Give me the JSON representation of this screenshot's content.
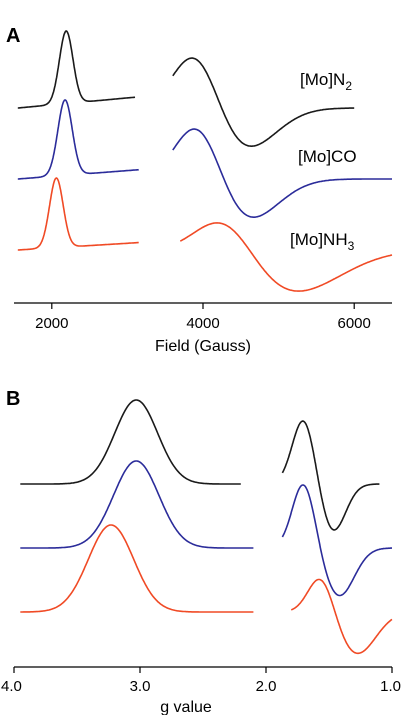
{
  "colors": {
    "n2": "#1a1a1a",
    "co": "#2b2c9a",
    "nh3": "#f04a25"
  },
  "chart_data": [
    {
      "panel": "A",
      "type": "line",
      "xlabel": "Field (Gauss)",
      "ylabel": "",
      "xlim": [
        1500,
        6500
      ],
      "xticks": [
        2000,
        4000,
        6000
      ],
      "grid": false,
      "series": [
        {
          "name": "[Mo]N2",
          "label_main": "[Mo]N",
          "label_sub": "2",
          "color_key": "n2",
          "offset": 2.0,
          "segments": [
            {
              "x0": 1550,
              "x1": 3100,
              "kind": "peak",
              "center": 2190,
              "width": 90,
              "amp": 1.25,
              "slope": 0.00012
            },
            {
              "x0": 3600,
              "x1": 6000,
              "kind": "deriv",
              "pos_center": 3920,
              "pos_width": 300,
              "pos_amp": 1.1,
              "neg_center": 4520,
              "neg_width": 420,
              "neg_amp": -0.75
            }
          ]
        },
        {
          "name": "[Mo]CO",
          "label_main": "[Mo]CO",
          "label_sub": "",
          "color_key": "co",
          "offset": 1.0,
          "segments": [
            {
              "x0": 1550,
              "x1": 3150,
              "kind": "peak",
              "center": 2175,
              "width": 95,
              "amp": 1.3,
              "slope": 0.0001
            },
            {
              "x0": 3600,
              "x1": 6500,
              "kind": "deriv",
              "pos_center": 3950,
              "pos_width": 300,
              "pos_amp": 1.1,
              "neg_center": 4550,
              "neg_width": 420,
              "neg_amp": -0.75
            }
          ]
        },
        {
          "name": "[Mo]NH3",
          "label_main": "[Mo]NH",
          "label_sub": "3",
          "color_key": "nh3",
          "offset": 0.0,
          "segments": [
            {
              "x0": 1550,
              "x1": 3150,
              "kind": "peak",
              "center": 2060,
              "width": 90,
              "amp": 1.2,
              "slope": 8e-05
            },
            {
              "x0": 3700,
              "x1": 6500,
              "kind": "deriv",
              "pos_center": 4300,
              "pos_width": 380,
              "pos_amp": 0.75,
              "neg_center": 5150,
              "neg_width": 650,
              "neg_amp": -0.75
            }
          ]
        }
      ]
    },
    {
      "panel": "B",
      "type": "line",
      "xlabel": "g value",
      "ylabel": "",
      "xlim": [
        4.0,
        1.0
      ],
      "xticks": [
        4.0,
        3.0,
        2.0,
        1.0
      ],
      "xtick_labels": [
        "4.0",
        "3.0",
        "2.0",
        "1.0"
      ],
      "grid": false,
      "series": [
        {
          "name": "black",
          "color_key": "n2",
          "offset": 2.0,
          "segments": [
            {
              "x0": 3.95,
              "x1": 2.2,
              "kind": "peak",
              "center": 3.03,
              "width": 0.17,
              "amp": 1.4,
              "slope": 0
            },
            {
              "x0": 1.87,
              "x1": 1.1,
              "kind": "deriv",
              "pos_center": 1.7,
              "pos_width": 0.09,
              "pos_amp": 1.1,
              "neg_center": 1.47,
              "neg_width": 0.1,
              "neg_amp": -0.8
            }
          ]
        },
        {
          "name": "blue",
          "color_key": "co",
          "offset": 1.0,
          "segments": [
            {
              "x0": 3.95,
              "x1": 2.1,
              "kind": "peak",
              "center": 3.03,
              "width": 0.18,
              "amp": 1.45,
              "slope": 0
            },
            {
              "x0": 1.87,
              "x1": 1.0,
              "kind": "deriv",
              "pos_center": 1.7,
              "pos_width": 0.09,
              "pos_amp": 1.1,
              "neg_center": 1.42,
              "neg_width": 0.12,
              "neg_amp": -0.8
            }
          ]
        },
        {
          "name": "red",
          "color_key": "nh3",
          "offset": 0.0,
          "segments": [
            {
              "x0": 3.95,
              "x1": 2.1,
              "kind": "peak",
              "center": 3.23,
              "width": 0.18,
              "amp": 1.45,
              "slope": 0
            },
            {
              "x0": 1.8,
              "x1": 1.0,
              "kind": "deriv",
              "pos_center": 1.56,
              "pos_width": 0.1,
              "pos_amp": 0.65,
              "neg_center": 1.28,
              "neg_width": 0.15,
              "neg_amp": -0.7
            }
          ]
        }
      ]
    }
  ]
}
